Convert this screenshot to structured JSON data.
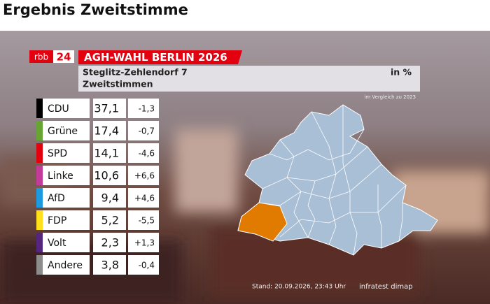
{
  "header": {
    "title": "Ergebnis Zweitstimme"
  },
  "graphic": {
    "logo": {
      "brand": "rbb",
      "channel": "24"
    },
    "banner": "AGH-WAHL BERLIN 2026",
    "district": "Steglitz-Zehlendorf 7",
    "vote": "Zweitstimmen",
    "unit": "in %",
    "comparison": "im Vergleich zu 2023",
    "table": {
      "rows": [
        {
          "party": "CDU",
          "share": "37,1",
          "change": "-1,3",
          "color": "#000000"
        },
        {
          "party": "Grüne",
          "share": "17,4",
          "change": "-0,7",
          "color": "#66a532"
        },
        {
          "party": "SPD",
          "share": "14,1",
          "change": "-4,6",
          "color": "#e3000f"
        },
        {
          "party": "Linke",
          "share": "10,6",
          "change": "+6,6",
          "color": "#c23a9a"
        },
        {
          "party": "AfD",
          "share": "9,4",
          "change": "+4,6",
          "color": "#1e9be0"
        },
        {
          "party": "FDP",
          "share": "5,2",
          "change": "-5,5",
          "color": "#ffe01a"
        },
        {
          "party": "Volt",
          "share": "2,3",
          "change": "+1,3",
          "color": "#55267e"
        },
        {
          "party": "Andere",
          "share": "3,8",
          "change": "-0,4",
          "color": "#8c8c8c"
        }
      ]
    },
    "footer": {
      "timestamp": "Stand: 20.09.2026, 23:43 Uhr",
      "source": "infratest dimap"
    }
  }
}
